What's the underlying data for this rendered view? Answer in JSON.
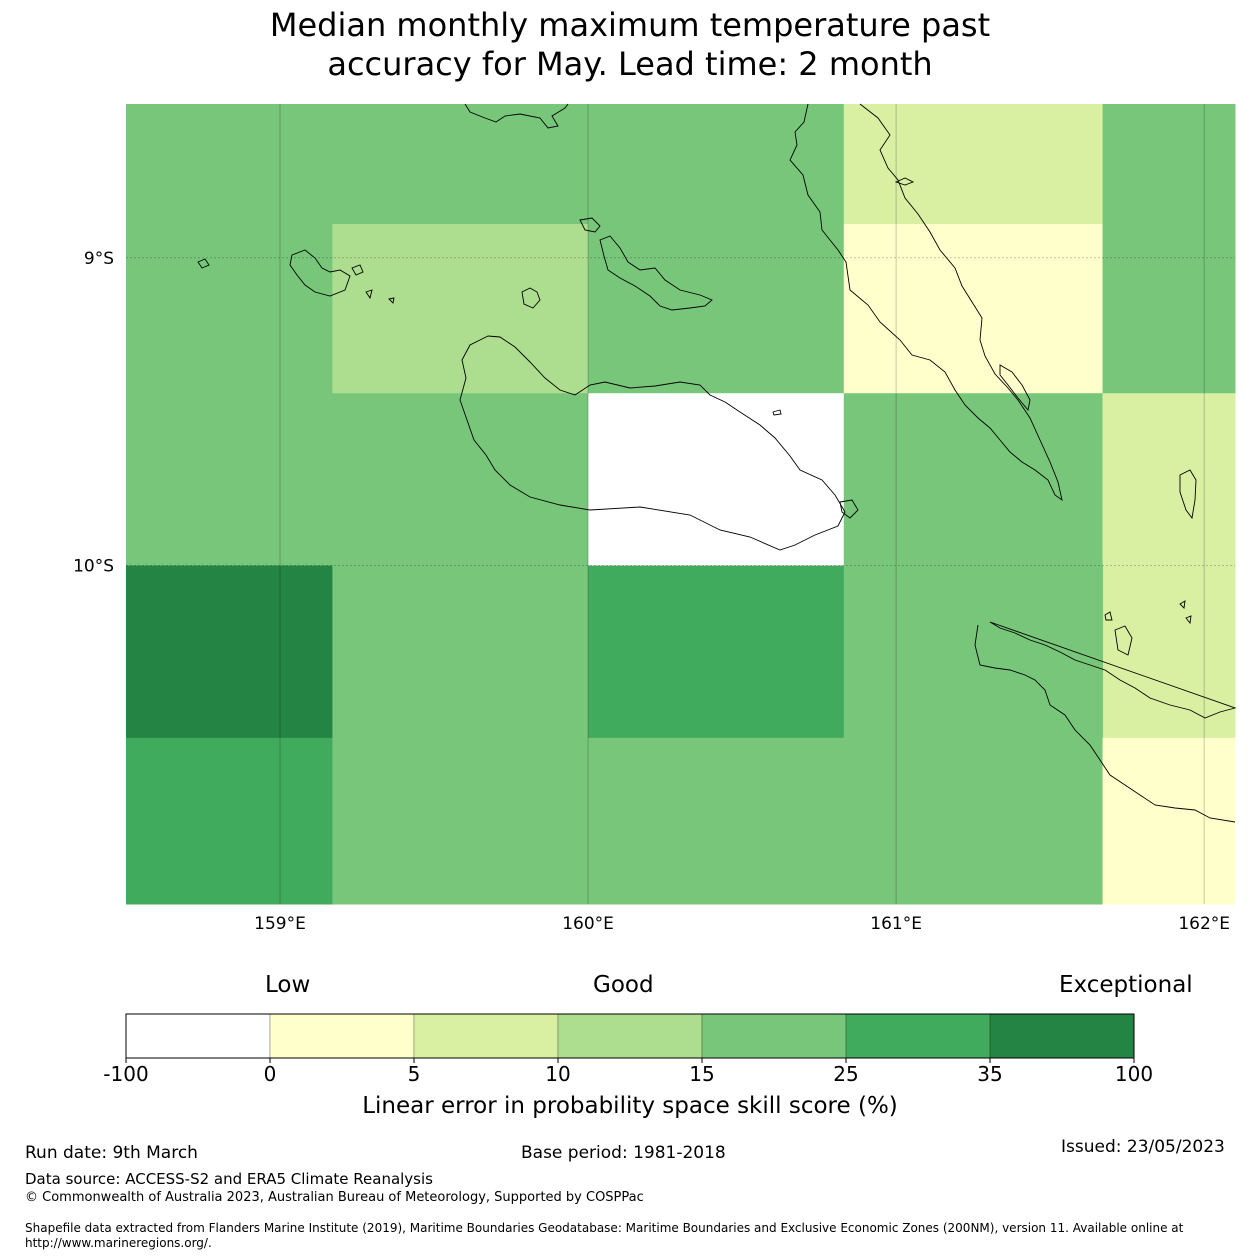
{
  "title": {
    "line1": "Median monthly maximum temperature past",
    "line2": "accuracy for May. Lead time: 2 month"
  },
  "map": {
    "lon_range": [
      158.5,
      162.1
    ],
    "lat_range": [
      -8.5,
      -11.1
    ],
    "lon_ticks": [
      {
        "value": 159,
        "label": "159°E"
      },
      {
        "value": 160,
        "label": "160°E"
      },
      {
        "value": 161,
        "label": "161°E"
      },
      {
        "value": 162,
        "label": "162°E"
      }
    ],
    "lat_ticks": [
      {
        "value": -9,
        "label": "9°S"
      },
      {
        "value": -10,
        "label": "10°S"
      }
    ],
    "grid": true,
    "cells": [
      {
        "lon0": 158.5,
        "lon1": 159.17,
        "lat0": -8.5,
        "lat1": -10.0,
        "level": 4
      },
      {
        "lon0": 159.17,
        "lon1": 160.0,
        "lat0": -8.5,
        "lat1": -8.89,
        "level": 4
      },
      {
        "lon0": 159.17,
        "lon1": 160.0,
        "lat0": -8.89,
        "lat1": -9.44,
        "level": 3
      },
      {
        "lon0": 159.17,
        "lon1": 160.0,
        "lat0": -9.44,
        "lat1": -10.0,
        "level": 4
      },
      {
        "lon0": 160.0,
        "lon1": 160.83,
        "lat0": -8.5,
        "lat1": -9.44,
        "level": 4
      },
      {
        "lon0": 160.0,
        "lon1": 160.83,
        "lat0": -9.44,
        "lat1": -10.0,
        "level": 0
      },
      {
        "lon0": 160.83,
        "lon1": 161.67,
        "lat0": -8.5,
        "lat1": -8.89,
        "level": 2
      },
      {
        "lon0": 160.83,
        "lon1": 161.67,
        "lat0": -8.89,
        "lat1": -9.44,
        "level": 1
      },
      {
        "lon0": 160.83,
        "lon1": 161.67,
        "lat0": -9.44,
        "lat1": -10.0,
        "level": 4
      },
      {
        "lon0": 161.67,
        "lon1": 162.1,
        "lat0": -8.5,
        "lat1": -9.44,
        "level": 4
      },
      {
        "lon0": 161.67,
        "lon1": 162.1,
        "lat0": -9.44,
        "lat1": -10.56,
        "level": 2
      },
      {
        "lon0": 158.5,
        "lon1": 159.17,
        "lat0": -10.0,
        "lat1": -10.56,
        "level": 6
      },
      {
        "lon0": 158.5,
        "lon1": 159.17,
        "lat0": -10.56,
        "lat1": -11.1,
        "level": 5
      },
      {
        "lon0": 159.17,
        "lon1": 160.0,
        "lat0": -10.0,
        "lat1": -11.1,
        "level": 4
      },
      {
        "lon0": 160.0,
        "lon1": 160.83,
        "lat0": -10.0,
        "lat1": -10.56,
        "level": 5
      },
      {
        "lon0": 160.0,
        "lon1": 160.83,
        "lat0": -10.56,
        "lat1": -11.1,
        "level": 4
      },
      {
        "lon0": 160.83,
        "lon1": 161.67,
        "lat0": -10.0,
        "lat1": -11.1,
        "level": 4
      },
      {
        "lon0": 161.67,
        "lon1": 162.1,
        "lat0": -10.56,
        "lat1": -11.1,
        "level": 1
      }
    ]
  },
  "legend": {
    "categories": [
      "Low",
      "Good",
      "Exceptional"
    ],
    "bounds": [
      "-100",
      "0",
      "5",
      "10",
      "15",
      "25",
      "35",
      "100"
    ],
    "colors": [
      "#ffffff",
      "#ffffcc",
      "#d9f0a3",
      "#addd8e",
      "#78c679",
      "#41ab5d",
      "#238443"
    ],
    "label": "Linear error in probability space skill score (%)"
  },
  "footer": {
    "run_date": "Run date: 9th March",
    "base_period": "Base period: 1981-2018",
    "issued": "Issued: 23/05/2023",
    "data_source": "Data source: ACCESS-S2 and ERA5 Climate Reanalysis",
    "copyright": "© Commonwealth of Australia 2023, Australian Bureau of Meteorology, Supported by COSPPac",
    "shapefile": "Shapefile data extracted from Flanders Marine Institute (2019), Maritime Boundaries Geodatabase: Maritime Boundaries and Exclusive Economic Zones (200NM), version 11. Available online at http://www.marineregions.org/."
  }
}
